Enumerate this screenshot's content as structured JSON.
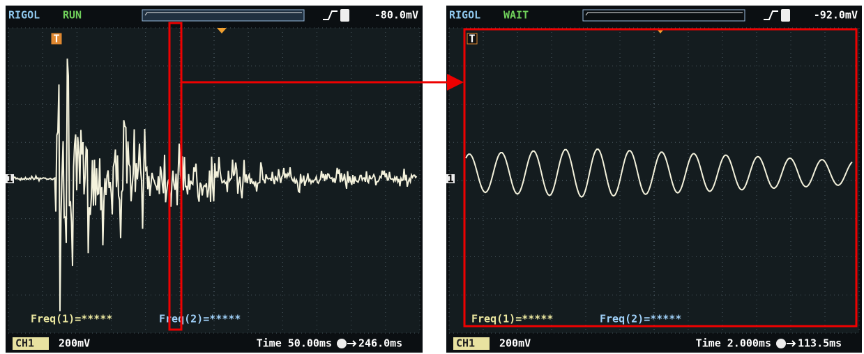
{
  "screens": [
    {
      "brand": "RIGOL",
      "status": "RUN",
      "trigger_level": "-80.0mV",
      "trigger_marker": "T",
      "channel_marker": "1",
      "freq1": "Freq(1)=*****",
      "freq2": "Freq(2)=*****",
      "channel": "CH1",
      "volts": "200mV",
      "time": "Time 50.00ms",
      "offset": "246.0ms"
    },
    {
      "brand": "RIGOL",
      "status": "WAIT",
      "trigger_level": "-92.0mV",
      "trigger_marker": "T",
      "channel_marker": "1",
      "freq1": "Freq(1)=*****",
      "freq2": "Freq(2)=*****",
      "channel": "CH1",
      "volts": "200mV",
      "time": "Time 2.000ms",
      "offset": "113.5ms"
    }
  ]
}
